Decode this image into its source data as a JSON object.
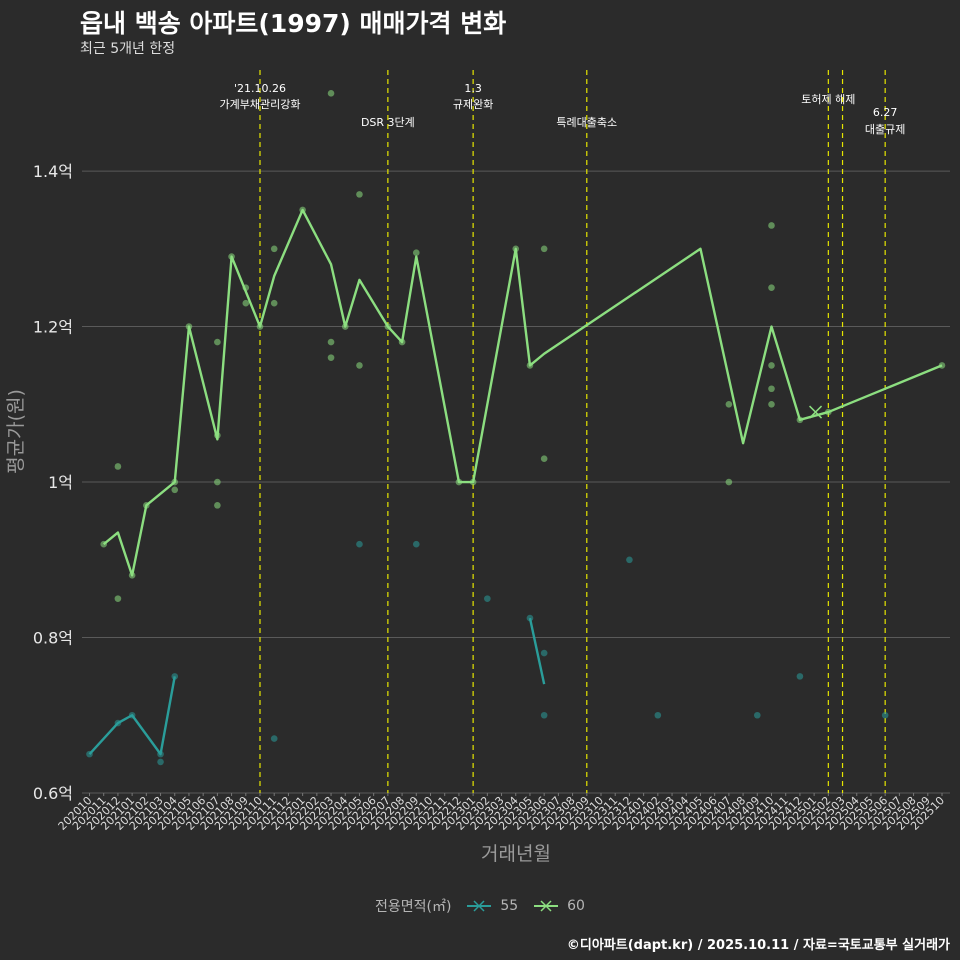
{
  "title": "읍내 백송 아파트(1997) 매매가격 변화",
  "subtitle": "최근 5개년 한정",
  "caption": "©디아파트(dapt.kr) / 2025.10.11 / 자료=국토교통부 실거래가",
  "chart_data": {
    "type": "line",
    "title": "읍내 백송 아파트(1997) 매매가격 변화",
    "subtitle": "최근 5개년 한정",
    "xlabel": "거래년월",
    "ylabel": "평균가(원)",
    "ylim": [
      0.6,
      1.53
    ],
    "y_ticks": [
      {
        "value": 0.6,
        "label": "0.6억"
      },
      {
        "value": 0.8,
        "label": "0.8억"
      },
      {
        "value": 1.0,
        "label": "1억"
      },
      {
        "value": 1.2,
        "label": "1.2억"
      },
      {
        "value": 1.4,
        "label": "1.4억"
      }
    ],
    "categories": [
      "202010",
      "202011",
      "202012",
      "202101",
      "202102",
      "202103",
      "202104",
      "202105",
      "202106",
      "202107",
      "202108",
      "202109",
      "202110",
      "202111",
      "202112",
      "202201",
      "202202",
      "202203",
      "202204",
      "202205",
      "202206",
      "202207",
      "202208",
      "202209",
      "202210",
      "202211",
      "202212",
      "202301",
      "202302",
      "202303",
      "202304",
      "202305",
      "202306",
      "202307",
      "202308",
      "202309",
      "202310",
      "202311",
      "202312",
      "202401",
      "202402",
      "202403",
      "202404",
      "202405",
      "202406",
      "202407",
      "202408",
      "202409",
      "202410",
      "202411",
      "202412",
      "202501",
      "202502",
      "202503",
      "202504",
      "202505",
      "202506",
      "202507",
      "202508",
      "202509",
      "202510"
    ],
    "legend_title": "전용면적(㎡)",
    "series": [
      {
        "name": "55",
        "color": "#2a9d9a",
        "line": [
          [
            0,
            0.65
          ],
          [
            2,
            0.69
          ],
          [
            3,
            0.7
          ],
          [
            5,
            0.65
          ],
          [
            6,
            0.75
          ],
          null,
          [
            31,
            0.825
          ],
          [
            32,
            0.74
          ]
        ],
        "points": [
          [
            0,
            0.65
          ],
          [
            2,
            0.69
          ],
          [
            3,
            0.7
          ],
          [
            5,
            0.64
          ],
          [
            5,
            0.65
          ],
          [
            6,
            0.75
          ],
          [
            13,
            0.67
          ],
          [
            19,
            0.92
          ],
          [
            23,
            0.92
          ],
          [
            28,
            0.85
          ],
          [
            31,
            0.825
          ],
          [
            32,
            0.78
          ],
          [
            32,
            0.7
          ],
          [
            38,
            0.9
          ],
          [
            40,
            0.7
          ],
          [
            47,
            0.7
          ],
          [
            50,
            0.75
          ],
          [
            56,
            0.7
          ]
        ]
      },
      {
        "name": "60",
        "color": "#8cde80",
        "line": [
          [
            1,
            0.92
          ],
          [
            2,
            0.935
          ],
          [
            3,
            0.88
          ],
          [
            4,
            0.97
          ],
          [
            6,
            1.0
          ],
          [
            7,
            1.2
          ],
          [
            9,
            1.055
          ],
          [
            10,
            1.29
          ],
          [
            12,
            1.2
          ],
          [
            13,
            1.265
          ],
          [
            15,
            1.35
          ],
          [
            17,
            1.28
          ],
          [
            18,
            1.2
          ],
          [
            19,
            1.26
          ],
          [
            21,
            1.2
          ],
          [
            22,
            1.18
          ],
          [
            23,
            1.29
          ],
          [
            26,
            1.0
          ],
          [
            27,
            1.0
          ],
          [
            30,
            1.3
          ],
          [
            31,
            1.15
          ],
          [
            32,
            1.165
          ],
          [
            43,
            1.3
          ],
          [
            46,
            1.05
          ],
          [
            48,
            1.2
          ],
          [
            50,
            1.08
          ],
          [
            51,
            1.085
          ],
          [
            52,
            1.09
          ],
          [
            60,
            1.15
          ]
        ],
        "points": [
          [
            1,
            0.92
          ],
          [
            2,
            0.85
          ],
          [
            2,
            1.02
          ],
          [
            3,
            0.88
          ],
          [
            4,
            0.97
          ],
          [
            6,
            1.0
          ],
          [
            6,
            0.99
          ],
          [
            7,
            1.2
          ],
          [
            9,
            1.18
          ],
          [
            9,
            1.0
          ],
          [
            9,
            0.97
          ],
          [
            9,
            1.06
          ],
          [
            10,
            1.29
          ],
          [
            11,
            1.25
          ],
          [
            11,
            1.23
          ],
          [
            12,
            1.2
          ],
          [
            13,
            1.3
          ],
          [
            13,
            1.23
          ],
          [
            15,
            1.35
          ],
          [
            17,
            1.5
          ],
          [
            17,
            1.18
          ],
          [
            17,
            1.16
          ],
          [
            18,
            1.2
          ],
          [
            19,
            1.37
          ],
          [
            19,
            1.15
          ],
          [
            21,
            1.2
          ],
          [
            22,
            1.18
          ],
          [
            23,
            1.295
          ],
          [
            26,
            1.0
          ],
          [
            27,
            1.0
          ],
          [
            30,
            1.3
          ],
          [
            31,
            1.15
          ],
          [
            32,
            1.3
          ],
          [
            32,
            1.03
          ],
          [
            45,
            1.1
          ],
          [
            45,
            1.0
          ],
          [
            48,
            1.33
          ],
          [
            48,
            1.25
          ],
          [
            48,
            1.15
          ],
          [
            48,
            1.12
          ],
          [
            48,
            1.1
          ],
          [
            50,
            1.08
          ],
          [
            52,
            1.09
          ],
          [
            60,
            1.15
          ]
        ],
        "cross": [
          51.1,
          1.09
        ]
      }
    ],
    "events": [
      {
        "x": 12,
        "label1": "'21.10.26",
        "label2": "가계부채관리강화",
        "row": 0
      },
      {
        "x": 21,
        "label1": "",
        "label2": "DSR 3단계",
        "row": 1
      },
      {
        "x": 27,
        "label1": "1.3",
        "label2": "규제완화",
        "row": 0
      },
      {
        "x": 35,
        "label1": "",
        "label2": "특례대출축소",
        "row": 1
      },
      {
        "x": 52,
        "label1": "",
        "label2": "토허제 해제",
        "row": 2
      },
      {
        "x": 53,
        "label1": "",
        "label2": "",
        "row": 0
      },
      {
        "x": 56,
        "label1": "6.27",
        "label2": "대출규제",
        "row": 3
      }
    ]
  }
}
